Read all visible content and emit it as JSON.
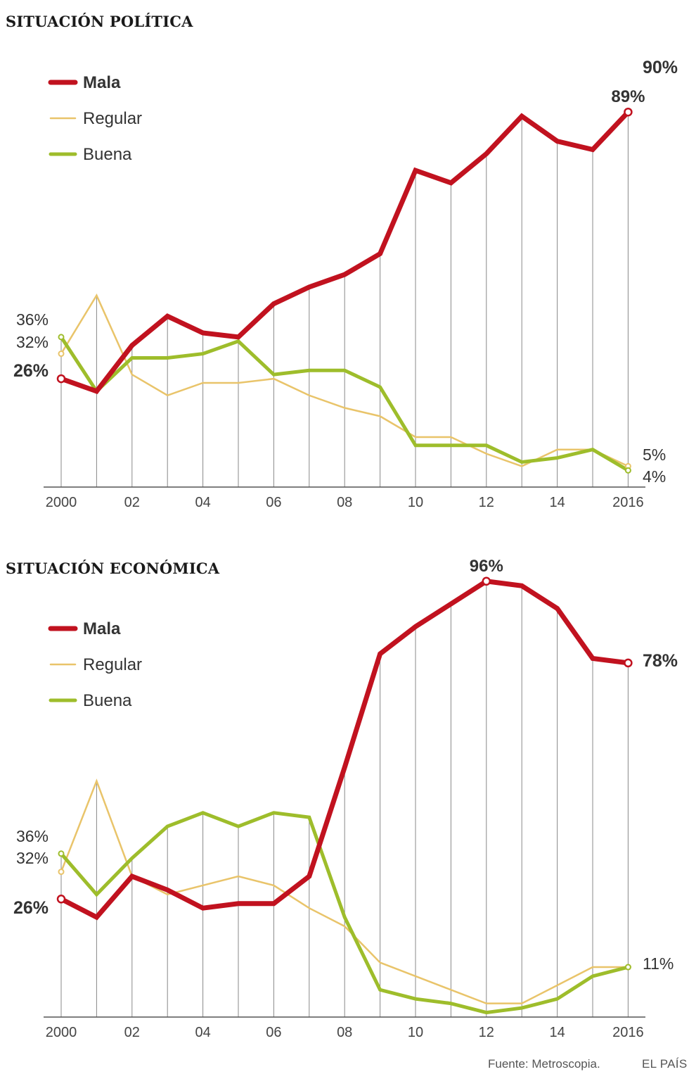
{
  "charts": [
    {
      "title": "SITUACIÓN POLÍTICA",
      "legend": [
        {
          "label": "Mala",
          "color": "#c1121f",
          "bold": true
        },
        {
          "label": "Regular",
          "color": "#e9c46a",
          "bold": false
        },
        {
          "label": "Buena",
          "color": "#9ebd2b",
          "bold": false
        }
      ],
      "start_labels": [
        "36%",
        "32%",
        "26%"
      ],
      "end_labels": [
        "90%",
        "5%",
        "4%"
      ],
      "peak_label": "89%"
    },
    {
      "title": "SITUACIÓN ECONÓMICA",
      "legend": [
        {
          "label": "Mala",
          "color": "#c1121f",
          "bold": true
        },
        {
          "label": "Regular",
          "color": "#e9c46a",
          "bold": false
        },
        {
          "label": "Buena",
          "color": "#9ebd2b",
          "bold": false
        }
      ],
      "start_labels": [
        "36%",
        "32%",
        "26%"
      ],
      "end_labels": [
        "78%",
        "11%"
      ],
      "peak_label": "96%"
    }
  ],
  "chart_data": [
    {
      "type": "line",
      "title": "SITUACIÓN POLÍTICA",
      "x": [
        2000,
        2001,
        2002,
        2003,
        2004,
        2005,
        2006,
        2007,
        2008,
        2009,
        2010,
        2011,
        2012,
        2013,
        2014,
        2015,
        2016
      ],
      "tick_labels": [
        "2000",
        "02",
        "04",
        "06",
        "08",
        "10",
        "12",
        "14",
        "2016"
      ],
      "tick_years": [
        2000,
        2002,
        2004,
        2006,
        2008,
        2010,
        2012,
        2014,
        2016
      ],
      "ylim": [
        0,
        100
      ],
      "series": [
        {
          "name": "Mala",
          "color": "#c1121f",
          "values": [
            26,
            23,
            34,
            41,
            37,
            36,
            44,
            48,
            51,
            56,
            76,
            73,
            80,
            89,
            83,
            81,
            90
          ]
        },
        {
          "name": "Regular",
          "color": "#e9c46a",
          "values": [
            32,
            46,
            27,
            22,
            25,
            25,
            26,
            22,
            19,
            17,
            12,
            12,
            8,
            5,
            9,
            9,
            5
          ]
        },
        {
          "name": "Buena",
          "color": "#9ebd2b",
          "values": [
            36,
            23,
            31,
            31,
            32,
            35,
            27,
            28,
            28,
            24,
            10,
            10,
            10,
            6,
            7,
            9,
            4
          ]
        }
      ],
      "legend_position": "top-left",
      "grid": "vertical"
    },
    {
      "type": "line",
      "title": "SITUACIÓN ECONÓMICA",
      "x": [
        2000,
        2001,
        2002,
        2003,
        2004,
        2005,
        2006,
        2007,
        2008,
        2009,
        2010,
        2011,
        2012,
        2013,
        2014,
        2015,
        2016
      ],
      "tick_labels": [
        "2000",
        "02",
        "04",
        "06",
        "08",
        "10",
        "12",
        "14",
        "2016"
      ],
      "tick_years": [
        2000,
        2002,
        2004,
        2006,
        2008,
        2010,
        2012,
        2014,
        2016
      ],
      "ylim": [
        0,
        100
      ],
      "series": [
        {
          "name": "Mala",
          "color": "#c1121f",
          "values": [
            26,
            22,
            31,
            28,
            24,
            25,
            25,
            31,
            55,
            80,
            86,
            91,
            96,
            95,
            90,
            79,
            78
          ]
        },
        {
          "name": "Regular",
          "color": "#e9c46a",
          "values": [
            32,
            52,
            31,
            27,
            29,
            31,
            29,
            24,
            20,
            12,
            9,
            6,
            3,
            3,
            7,
            11,
            11
          ]
        },
        {
          "name": "Buena",
          "color": "#9ebd2b",
          "values": [
            36,
            27,
            35,
            42,
            45,
            42,
            45,
            44,
            22,
            6,
            4,
            3,
            1,
            2,
            4,
            9,
            11
          ]
        }
      ],
      "legend_position": "top-left",
      "grid": "vertical"
    }
  ],
  "footer": {
    "source": "Fuente: Metroscopia.",
    "brand": "EL PAÍS"
  }
}
